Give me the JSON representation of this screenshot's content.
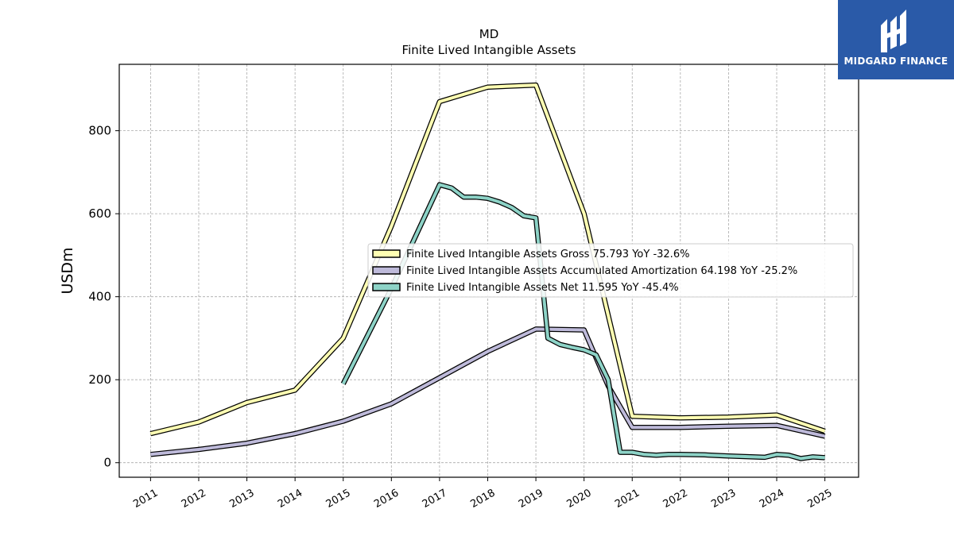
{
  "brand": {
    "name": "MIDGARD FINANCE",
    "bg_color": "#2a5aa8"
  },
  "chart_data": {
    "type": "line",
    "title": "MD",
    "subtitle": "Finite Lived Intangible Assets",
    "xlabel": "",
    "ylabel": "USDm",
    "xlim": [
      2010.35,
      2025.7
    ],
    "ylim": [
      -35,
      960
    ],
    "x_ticks": [
      "2011",
      "2012",
      "2013",
      "2014",
      "2015",
      "2016",
      "2017",
      "2018",
      "2019",
      "2020",
      "2021",
      "2022",
      "2023",
      "2024",
      "2025"
    ],
    "y_ticks": [
      0,
      200,
      400,
      600,
      800
    ],
    "grid": true,
    "legend_position": "center-right",
    "series": [
      {
        "name": "Finite Lived Intangible Assets Gross  75.793 YoY -32.6%",
        "color": "#ffffb3",
        "points": [
          [
            2011,
            70
          ],
          [
            2012,
            98
          ],
          [
            2013,
            145
          ],
          [
            2014,
            175
          ],
          [
            2015,
            300
          ],
          [
            2016,
            570
          ],
          [
            2017,
            870
          ],
          [
            2018,
            905
          ],
          [
            2019,
            910
          ],
          [
            2020,
            600
          ],
          [
            2021,
            112
          ],
          [
            2022,
            108
          ],
          [
            2023,
            110
          ],
          [
            2024,
            115
          ],
          [
            2025,
            76
          ]
        ]
      },
      {
        "name": "Finite Lived Intangible Assets Accumulated Amortization  64.198 YoY -25.2%",
        "color": "#bebada",
        "points": [
          [
            2011,
            20
          ],
          [
            2012,
            32
          ],
          [
            2013,
            47
          ],
          [
            2014,
            70
          ],
          [
            2015,
            100
          ],
          [
            2016,
            142
          ],
          [
            2017,
            205
          ],
          [
            2018,
            268
          ],
          [
            2019,
            322
          ],
          [
            2020,
            320
          ],
          [
            2020.5,
            185
          ],
          [
            2021,
            85
          ],
          [
            2022,
            85
          ],
          [
            2023,
            88
          ],
          [
            2024,
            90
          ],
          [
            2025,
            64
          ]
        ]
      },
      {
        "name": "Finite Lived Intangible Assets Net  11.595 YoY -45.4%",
        "color": "#8dd3c7",
        "points": [
          [
            2015,
            190
          ],
          [
            2016,
            420
          ],
          [
            2017,
            670
          ],
          [
            2017.25,
            662
          ],
          [
            2017.5,
            640
          ],
          [
            2017.75,
            640
          ],
          [
            2018,
            637
          ],
          [
            2018.25,
            628
          ],
          [
            2018.5,
            615
          ],
          [
            2018.75,
            595
          ],
          [
            2019,
            590
          ],
          [
            2019.25,
            300
          ],
          [
            2019.5,
            285
          ],
          [
            2019.75,
            278
          ],
          [
            2020,
            272
          ],
          [
            2020.25,
            260
          ],
          [
            2020.5,
            200
          ],
          [
            2020.75,
            25
          ],
          [
            2021,
            25
          ],
          [
            2021.25,
            20
          ],
          [
            2021.5,
            18
          ],
          [
            2021.75,
            20
          ],
          [
            2022,
            20
          ],
          [
            2022.5,
            19
          ],
          [
            2023,
            16
          ],
          [
            2023.75,
            13
          ],
          [
            2024,
            20
          ],
          [
            2024.25,
            18
          ],
          [
            2024.5,
            10
          ],
          [
            2024.75,
            14
          ],
          [
            2025,
            12
          ]
        ]
      }
    ]
  }
}
